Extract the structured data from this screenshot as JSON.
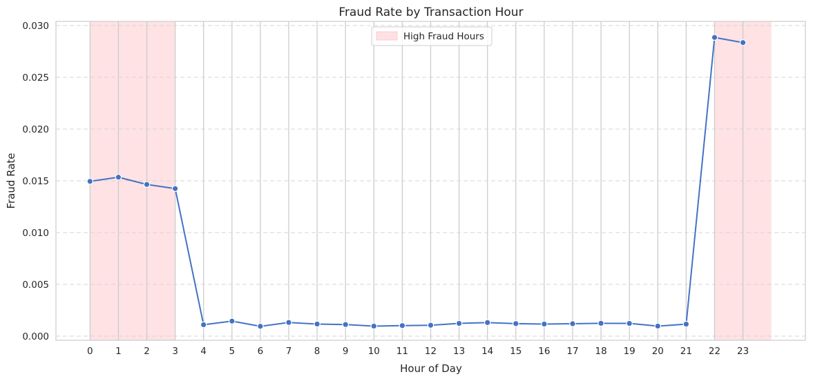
{
  "chart_data": {
    "type": "line",
    "title": "Fraud Rate by Transaction Hour",
    "xlabel": "Hour of Day",
    "ylabel": "Fraud Rate",
    "x": [
      0,
      1,
      2,
      3,
      4,
      5,
      6,
      7,
      8,
      9,
      10,
      11,
      12,
      13,
      14,
      15,
      16,
      17,
      18,
      19,
      20,
      21,
      22,
      23
    ],
    "x_tick_labels": [
      "0",
      "1",
      "2",
      "3",
      "4",
      "5",
      "6",
      "7",
      "8",
      "9",
      "10",
      "11",
      "12",
      "13",
      "14",
      "15",
      "16",
      "17",
      "18",
      "19",
      "20",
      "21",
      "22",
      "23"
    ],
    "y_tick_labels": [
      "0.000",
      "0.005",
      "0.010",
      "0.015",
      "0.020",
      "0.025",
      "0.030"
    ],
    "y_ticks": [
      0.0,
      0.005,
      0.01,
      0.015,
      0.02,
      0.025,
      0.03
    ],
    "series": [
      {
        "values": [
          0.01495,
          0.01535,
          0.01465,
          0.01425,
          0.0011,
          0.00145,
          0.00095,
          0.00132,
          0.00117,
          0.00112,
          0.00097,
          0.00102,
          0.00105,
          0.00123,
          0.00131,
          0.00121,
          0.00117,
          0.0012,
          0.00124,
          0.00123,
          0.00097,
          0.00116,
          0.02885,
          0.02835
        ],
        "color": "#4472c4"
      }
    ],
    "shaded_regions": [
      {
        "x_start": 0,
        "x_end": 3,
        "color": "#ffb3b8"
      },
      {
        "x_start": 22,
        "x_end": 24,
        "color": "#ffb3b8"
      }
    ],
    "legend": {
      "label": "High Fraud Hours",
      "placement": "top-center"
    },
    "xlim": [
      -1.2,
      25.2
    ],
    "ylim": [
      -0.0004,
      0.0304
    ],
    "grid": {
      "vertical": true,
      "horizontal_dashed": true
    }
  }
}
